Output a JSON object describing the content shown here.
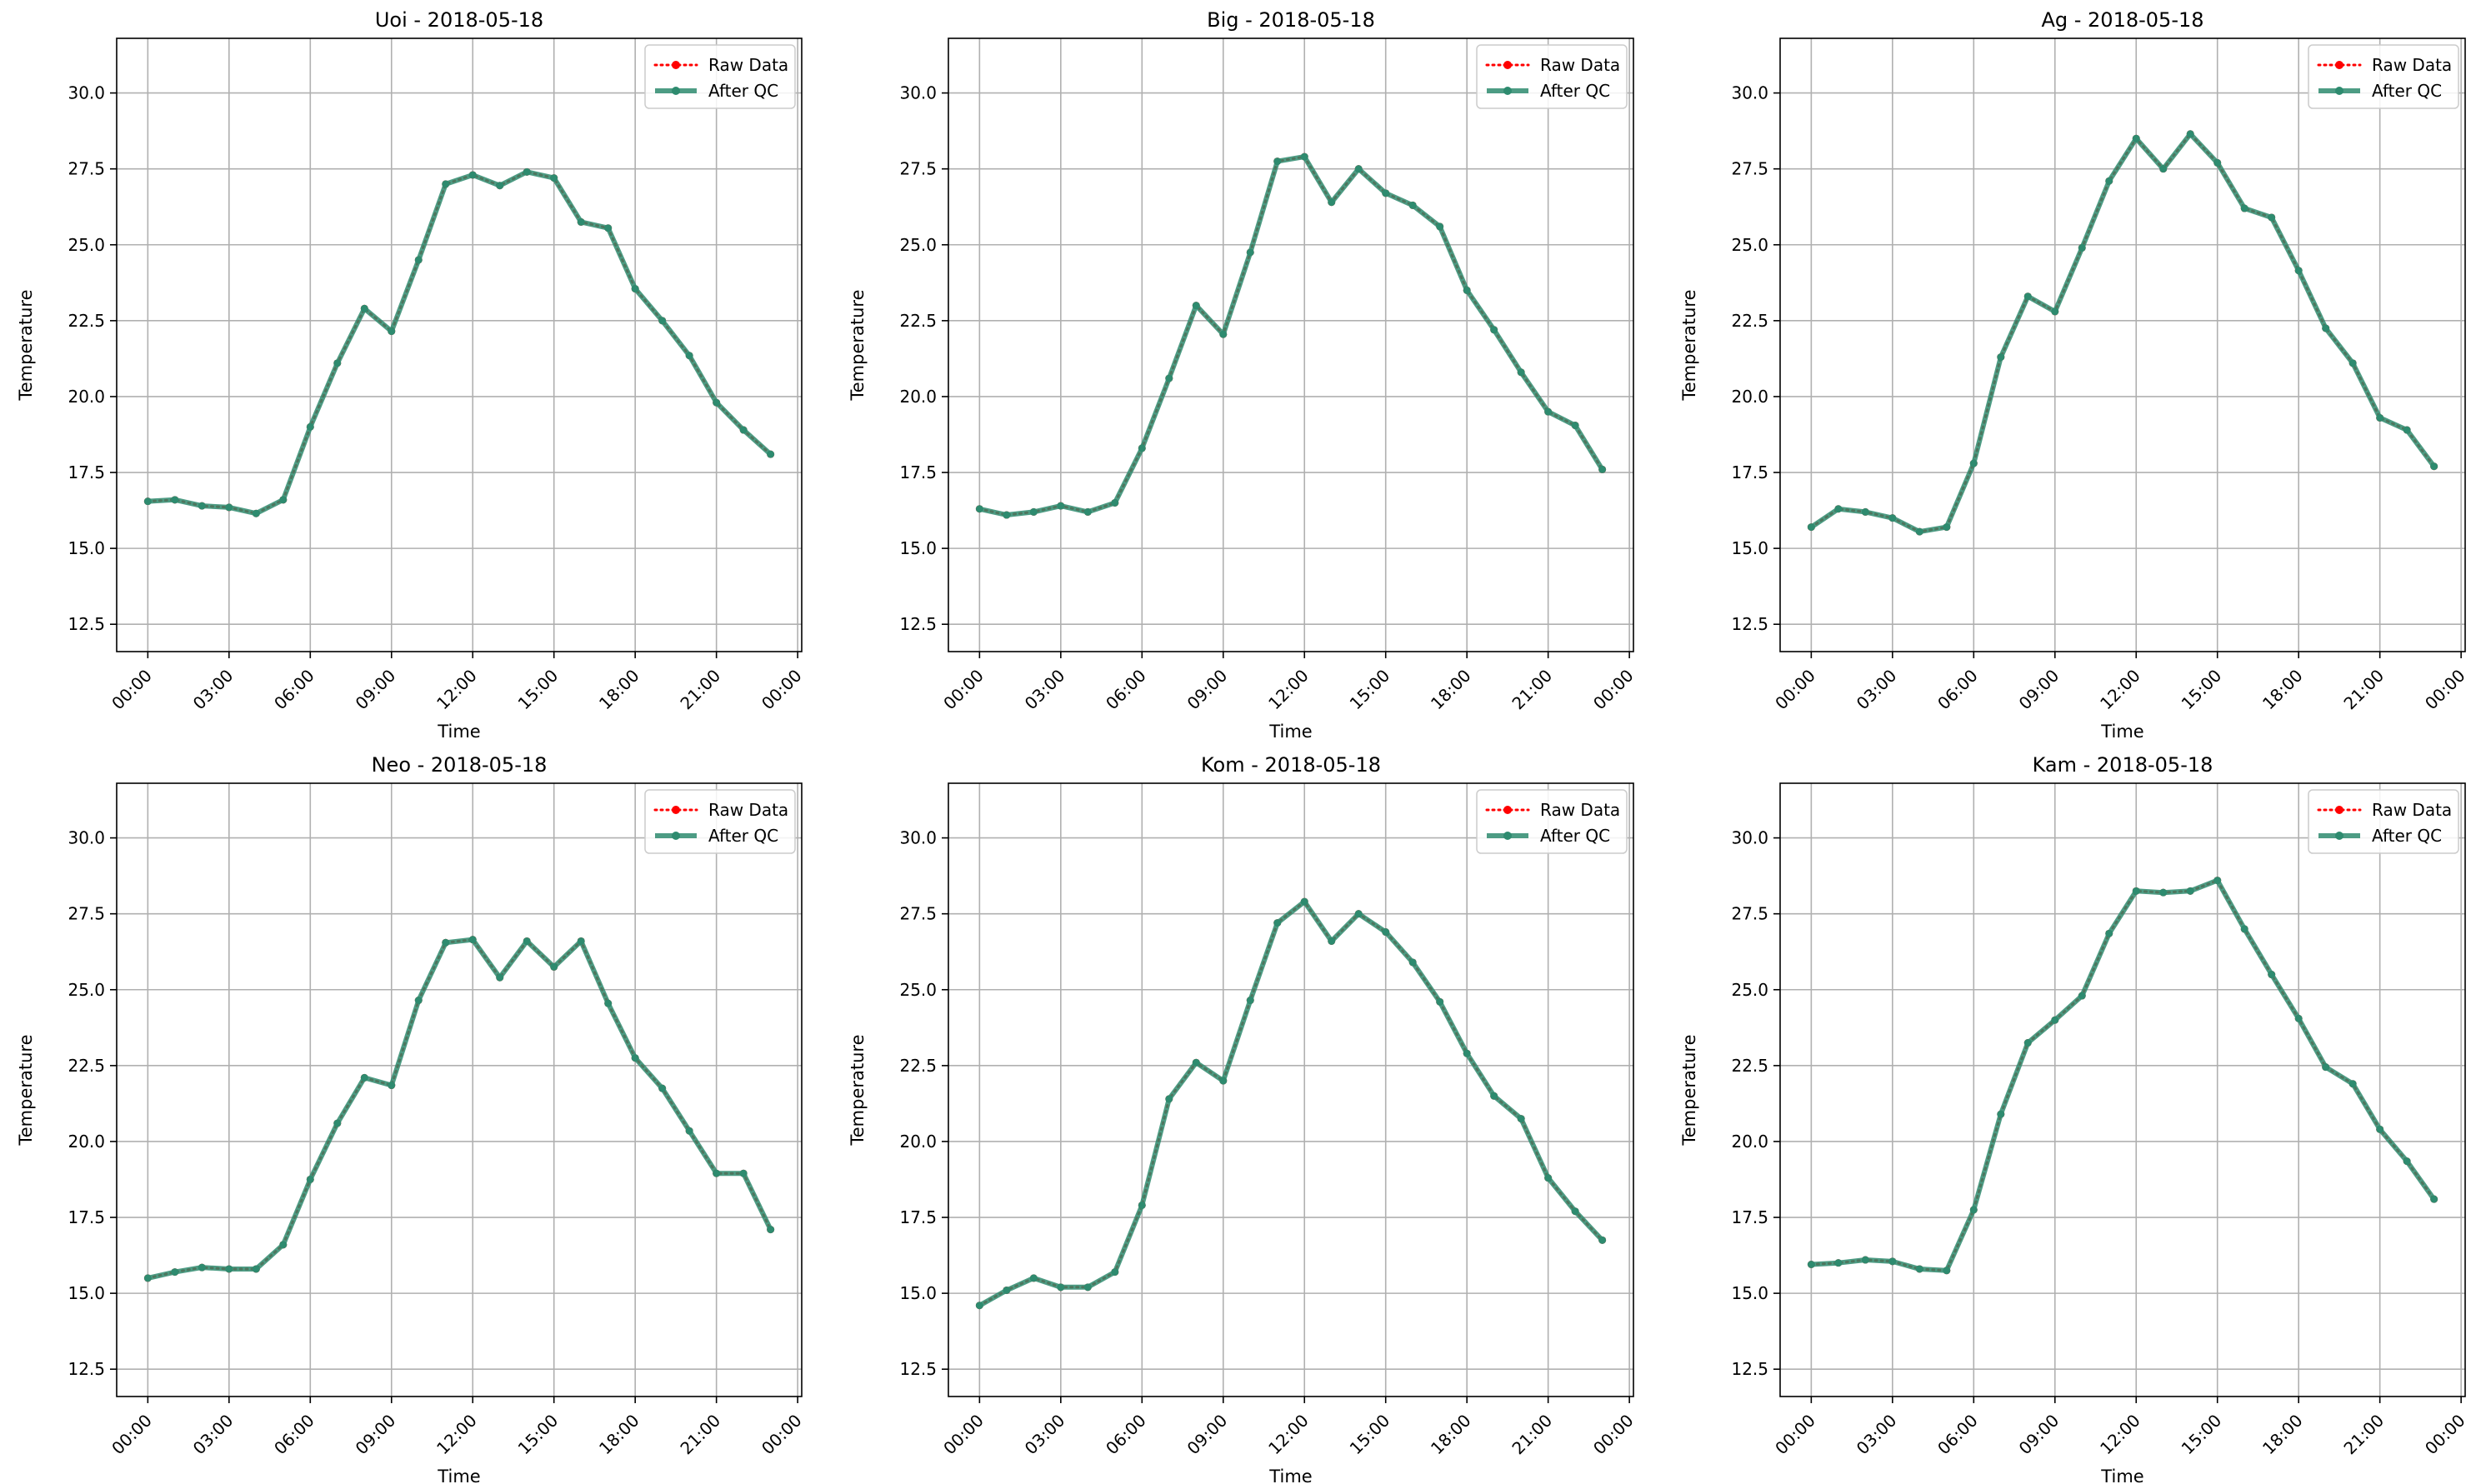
{
  "colors": {
    "raw": "#ff0000",
    "qc": "#2e8b6f",
    "grid": "#b0b0b0",
    "axis": "#000000"
  },
  "legend": {
    "placement": "top-right",
    "raw_label": "Raw Data",
    "qc_label": "After QC"
  },
  "chart_data": [
    {
      "type": "line",
      "title": "Uoi - 2018-05-18",
      "xlabel": "Time",
      "ylabel": "Temperature",
      "xticks": [
        "00:00",
        "03:00",
        "06:00",
        "09:00",
        "12:00",
        "15:00",
        "18:00",
        "21:00",
        "00:00"
      ],
      "yticks": [
        "12.5",
        "15.0",
        "17.5",
        "20.0",
        "22.5",
        "25.0",
        "27.5",
        "30.0"
      ],
      "ylim": [
        11.6,
        31.8
      ],
      "grid": true,
      "x_hours": [
        0,
        1,
        2,
        3,
        4,
        5,
        6,
        7,
        8,
        9,
        10,
        11,
        12,
        13,
        14,
        15,
        16,
        17,
        18,
        19,
        20,
        21,
        22,
        23
      ],
      "series": [
        {
          "name": "Raw Data",
          "values": [
            16.55,
            16.6,
            16.4,
            16.35,
            16.15,
            16.6,
            19.0,
            21.1,
            22.9,
            22.15,
            24.5,
            27.0,
            27.3,
            26.95,
            27.4,
            27.2,
            25.75,
            25.55,
            23.55,
            22.5,
            21.35,
            19.8,
            18.9,
            18.1
          ]
        },
        {
          "name": "After QC",
          "values": [
            16.55,
            16.6,
            16.4,
            16.35,
            16.15,
            16.6,
            19.0,
            21.1,
            22.9,
            22.15,
            24.5,
            27.0,
            27.3,
            26.95,
            27.4,
            27.2,
            25.75,
            25.55,
            23.55,
            22.5,
            21.35,
            19.8,
            18.9,
            18.1
          ]
        }
      ]
    },
    {
      "type": "line",
      "title": "Big - 2018-05-18",
      "xlabel": "Time",
      "ylabel": "Temperature",
      "xticks": [
        "00:00",
        "03:00",
        "06:00",
        "09:00",
        "12:00",
        "15:00",
        "18:00",
        "21:00",
        "00:00"
      ],
      "yticks": [
        "12.5",
        "15.0",
        "17.5",
        "20.0",
        "22.5",
        "25.0",
        "27.5",
        "30.0"
      ],
      "ylim": [
        11.6,
        31.8
      ],
      "grid": true,
      "x_hours": [
        0,
        1,
        2,
        3,
        4,
        5,
        6,
        7,
        8,
        9,
        10,
        11,
        12,
        13,
        14,
        15,
        16,
        17,
        18,
        19,
        20,
        21,
        22,
        23
      ],
      "series": [
        {
          "name": "Raw Data",
          "values": [
            16.3,
            16.1,
            16.2,
            16.4,
            16.2,
            16.5,
            18.3,
            20.6,
            23.0,
            22.05,
            24.75,
            27.75,
            27.9,
            26.4,
            27.5,
            26.7,
            26.3,
            25.6,
            23.5,
            22.2,
            20.8,
            19.5,
            19.05,
            17.6
          ]
        },
        {
          "name": "After QC",
          "values": [
            16.3,
            16.1,
            16.2,
            16.4,
            16.2,
            16.5,
            18.3,
            20.6,
            23.0,
            22.05,
            24.75,
            27.75,
            27.9,
            26.4,
            27.5,
            26.7,
            26.3,
            25.6,
            23.5,
            22.2,
            20.8,
            19.5,
            19.05,
            17.6
          ]
        }
      ]
    },
    {
      "type": "line",
      "title": "Ag - 2018-05-18",
      "xlabel": "Time",
      "ylabel": "Temperature",
      "xticks": [
        "00:00",
        "03:00",
        "06:00",
        "09:00",
        "12:00",
        "15:00",
        "18:00",
        "21:00",
        "00:00"
      ],
      "yticks": [
        "12.5",
        "15.0",
        "17.5",
        "20.0",
        "22.5",
        "25.0",
        "27.5",
        "30.0"
      ],
      "ylim": [
        11.6,
        31.8
      ],
      "grid": true,
      "x_hours": [
        0,
        1,
        2,
        3,
        4,
        5,
        6,
        7,
        8,
        9,
        10,
        11,
        12,
        13,
        14,
        15,
        16,
        17,
        18,
        19,
        20,
        21,
        22,
        23
      ],
      "series": [
        {
          "name": "Raw Data",
          "values": [
            15.7,
            16.3,
            16.2,
            16.0,
            15.55,
            15.7,
            17.8,
            21.3,
            23.3,
            22.8,
            24.9,
            27.1,
            28.5,
            27.5,
            28.65,
            27.7,
            26.2,
            25.9,
            24.15,
            22.25,
            21.1,
            19.3,
            18.9,
            17.7
          ]
        },
        {
          "name": "After QC",
          "values": [
            15.7,
            16.3,
            16.2,
            16.0,
            15.55,
            15.7,
            17.8,
            21.3,
            23.3,
            22.8,
            24.9,
            27.1,
            28.5,
            27.5,
            28.65,
            27.7,
            26.2,
            25.9,
            24.15,
            22.25,
            21.1,
            19.3,
            18.9,
            17.7
          ]
        }
      ]
    },
    {
      "type": "line",
      "title": "Neo - 2018-05-18",
      "xlabel": "Time",
      "ylabel": "Temperature",
      "xticks": [
        "00:00",
        "03:00",
        "06:00",
        "09:00",
        "12:00",
        "15:00",
        "18:00",
        "21:00",
        "00:00"
      ],
      "yticks": [
        "12.5",
        "15.0",
        "17.5",
        "20.0",
        "22.5",
        "25.0",
        "27.5",
        "30.0"
      ],
      "ylim": [
        11.6,
        31.8
      ],
      "grid": true,
      "x_hours": [
        0,
        1,
        2,
        3,
        4,
        5,
        6,
        7,
        8,
        9,
        10,
        11,
        12,
        13,
        14,
        15,
        16,
        17,
        18,
        19,
        20,
        21,
        22,
        23
      ],
      "series": [
        {
          "name": "Raw Data",
          "values": [
            15.5,
            15.7,
            15.85,
            15.8,
            15.8,
            16.6,
            18.75,
            20.6,
            22.1,
            21.85,
            24.65,
            26.55,
            26.65,
            25.4,
            26.6,
            25.75,
            26.6,
            24.55,
            22.75,
            21.75,
            20.35,
            18.95,
            18.95,
            17.1
          ]
        },
        {
          "name": "After QC",
          "values": [
            15.5,
            15.7,
            15.85,
            15.8,
            15.8,
            16.6,
            18.75,
            20.6,
            22.1,
            21.85,
            24.65,
            26.55,
            26.65,
            25.4,
            26.6,
            25.75,
            26.6,
            24.55,
            22.75,
            21.75,
            20.35,
            18.95,
            18.95,
            17.1
          ]
        }
      ]
    },
    {
      "type": "line",
      "title": "Kom - 2018-05-18",
      "xlabel": "Time",
      "ylabel": "Temperature",
      "xticks": [
        "00:00",
        "03:00",
        "06:00",
        "09:00",
        "12:00",
        "15:00",
        "18:00",
        "21:00",
        "00:00"
      ],
      "yticks": [
        "12.5",
        "15.0",
        "17.5",
        "20.0",
        "22.5",
        "25.0",
        "27.5",
        "30.0"
      ],
      "ylim": [
        11.6,
        31.8
      ],
      "grid": true,
      "x_hours": [
        0,
        1,
        2,
        3,
        4,
        5,
        6,
        7,
        8,
        9,
        10,
        11,
        12,
        13,
        14,
        15,
        16,
        17,
        18,
        19,
        20,
        21,
        22,
        23
      ],
      "series": [
        {
          "name": "Raw Data",
          "values": [
            14.6,
            15.1,
            15.5,
            15.2,
            15.2,
            15.7,
            17.9,
            21.4,
            22.6,
            22.0,
            24.65,
            27.2,
            27.9,
            26.6,
            27.5,
            26.9,
            25.9,
            24.6,
            22.9,
            21.5,
            20.75,
            18.8,
            17.7,
            16.75
          ]
        },
        {
          "name": "After QC",
          "values": [
            14.6,
            15.1,
            15.5,
            15.2,
            15.2,
            15.7,
            17.9,
            21.4,
            22.6,
            22.0,
            24.65,
            27.2,
            27.9,
            26.6,
            27.5,
            26.9,
            25.9,
            24.6,
            22.9,
            21.5,
            20.75,
            18.8,
            17.7,
            16.75
          ]
        }
      ]
    },
    {
      "type": "line",
      "title": "Kam - 2018-05-18",
      "xlabel": "Time",
      "ylabel": "Temperature",
      "xticks": [
        "00:00",
        "03:00",
        "06:00",
        "09:00",
        "12:00",
        "15:00",
        "18:00",
        "21:00",
        "00:00"
      ],
      "yticks": [
        "12.5",
        "15.0",
        "17.5",
        "20.0",
        "22.5",
        "25.0",
        "27.5",
        "30.0"
      ],
      "ylim": [
        11.6,
        31.8
      ],
      "grid": true,
      "x_hours": [
        0,
        1,
        2,
        3,
        4,
        5,
        6,
        7,
        8,
        9,
        10,
        11,
        12,
        13,
        14,
        15,
        16,
        17,
        18,
        19,
        20,
        21,
        22,
        23
      ],
      "series": [
        {
          "name": "Raw Data",
          "values": [
            15.95,
            16.0,
            16.1,
            16.05,
            15.8,
            15.75,
            17.75,
            20.9,
            23.25,
            24.0,
            24.8,
            26.85,
            28.25,
            28.2,
            28.25,
            28.6,
            27.0,
            25.5,
            24.05,
            22.45,
            21.9,
            20.4,
            19.35,
            18.1
          ]
        },
        {
          "name": "After QC",
          "values": [
            15.95,
            16.0,
            16.1,
            16.05,
            15.8,
            15.75,
            17.75,
            20.9,
            23.25,
            24.0,
            24.8,
            26.85,
            28.25,
            28.2,
            28.25,
            28.6,
            27.0,
            25.5,
            24.05,
            22.45,
            21.9,
            20.4,
            19.35,
            18.1
          ]
        }
      ]
    }
  ]
}
